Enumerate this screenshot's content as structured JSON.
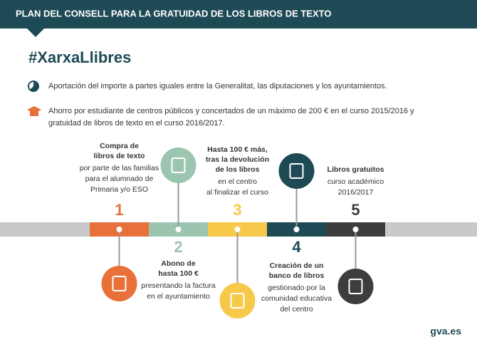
{
  "header": {
    "title": "PLAN DEL CONSELL PARA LA GRATUIDAD DE LOS LIBROS DE TEXTO"
  },
  "hashtag": "#XarxaLlibres",
  "bullets": [
    {
      "lines": [
        "Aportación del importe a partes iguales entre la Generalitat, las diputaciones y los ayuntamientos."
      ]
    },
    {
      "lines": [
        "Ahorro por estudiante de centros públicos y concertados de un máximo de 200 € en el curso 2015/2016 y",
        "gratuidad de libros de texto en el curso 2016/2017."
      ]
    }
  ],
  "steps": [
    {
      "number": "1",
      "title": [
        "Compra de",
        "libros de texto"
      ],
      "description": [
        "por parte de las familias",
        "para  el alumnado de",
        "Primaria y/o ESO"
      ]
    },
    {
      "number": "2",
      "title": [
        "Abono de",
        "hasta 100 €"
      ],
      "description": [
        "presentando la factura",
        "en el ayuntamiento"
      ]
    },
    {
      "number": "3",
      "title": [
        "Hasta 100 € más,",
        "tras la devolución",
        "de los libros"
      ],
      "description": [
        "en el centro",
        "al finalizar el curso"
      ]
    },
    {
      "number": "4",
      "title": [
        "Creación de un",
        "banco de libros"
      ],
      "description": [
        "gestionado por la",
        "comunidad educativa",
        "del centro"
      ]
    },
    {
      "number": "5",
      "title": [
        "Libros gratuitos"
      ],
      "description": [
        "curso académico",
        "2016/2017"
      ]
    }
  ],
  "footer": "gva.es"
}
